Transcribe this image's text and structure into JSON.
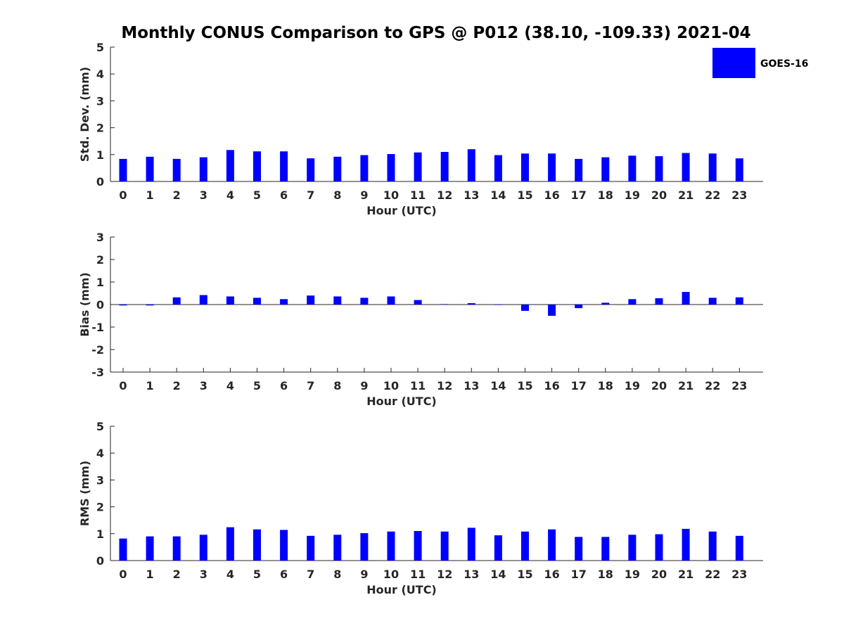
{
  "colors": {
    "bar": "#0000ff",
    "axis": "#262626",
    "background": "#ffffff"
  },
  "chart_data": {
    "type": "bar",
    "title": "Monthly CONUS Comparison to GPS @ P012 (38.10, -109.33) 2021-04",
    "legend": {
      "labels": [
        "GOES-16"
      ],
      "position": "top-right"
    },
    "categories": [
      "0",
      "1",
      "2",
      "3",
      "4",
      "5",
      "6",
      "7",
      "8",
      "9",
      "10",
      "11",
      "12",
      "13",
      "14",
      "15",
      "16",
      "17",
      "18",
      "19",
      "20",
      "21",
      "22",
      "23"
    ],
    "panels": [
      {
        "id": "std",
        "ylabel": "Std. Dev. (mm)",
        "xlabel": "Hour (UTC)",
        "ylim": [
          0,
          5
        ],
        "yticks": [
          "0",
          "1",
          "2",
          "3",
          "4",
          "5"
        ],
        "series": [
          {
            "name": "GOES-16",
            "values": [
              0.84,
              0.92,
              0.84,
              0.9,
              1.17,
              1.12,
              1.12,
              0.86,
              0.92,
              0.98,
              1.02,
              1.08,
              1.1,
              1.2,
              0.98,
              1.04,
              1.04,
              0.84,
              0.9,
              0.96,
              0.94,
              1.06,
              1.04,
              0.86
            ]
          }
        ]
      },
      {
        "id": "bias",
        "ylabel": "Bias (mm)",
        "xlabel": "Hour (UTC)",
        "ylim": [
          -3,
          3
        ],
        "yticks": [
          "-3",
          "-2",
          "-1",
          "0",
          "1",
          "2",
          "3"
        ],
        "series": [
          {
            "name": "GOES-16",
            "values": [
              -0.04,
              -0.04,
              0.32,
              0.42,
              0.36,
              0.3,
              0.24,
              0.4,
              0.36,
              0.3,
              0.36,
              0.2,
              0.02,
              0.06,
              -0.01,
              -0.28,
              -0.5,
              -0.16,
              0.08,
              0.24,
              0.28,
              0.56,
              0.3,
              0.32
            ]
          }
        ]
      },
      {
        "id": "rms",
        "ylabel": "RMS (mm)",
        "xlabel": "Hour (UTC)",
        "ylim": [
          0,
          5
        ],
        "yticks": [
          "0",
          "1",
          "2",
          "3",
          "4",
          "5"
        ],
        "series": [
          {
            "name": "GOES-16",
            "values": [
              0.82,
              0.9,
              0.9,
              0.96,
              1.24,
              1.16,
              1.14,
              0.92,
              0.96,
              1.02,
              1.08,
              1.1,
              1.08,
              1.22,
              0.94,
              1.08,
              1.16,
              0.88,
              0.88,
              0.96,
              0.98,
              1.18,
              1.08,
              0.92
            ]
          }
        ]
      }
    ]
  }
}
